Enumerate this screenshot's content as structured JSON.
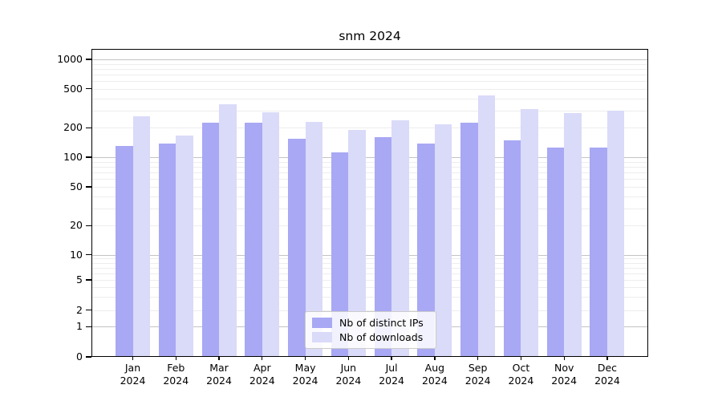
{
  "title": "snm 2024",
  "chart_data": {
    "type": "bar",
    "title": "snm 2024",
    "xlabel": "",
    "ylabel": "",
    "yscale": "symlog",
    "ylim": [
      0,
      1000
    ],
    "yticks": [
      0,
      1,
      2,
      5,
      10,
      20,
      50,
      100,
      200,
      500,
      1000
    ],
    "grid": "on",
    "legend_position": "bottom-center",
    "categories": [
      "Jan 2024",
      "Feb 2024",
      "Mar 2024",
      "Apr 2024",
      "May 2024",
      "Jun 2024",
      "Jul 2024",
      "Aug 2024",
      "Sep 2024",
      "Oct 2024",
      "Nov 2024",
      "Dec 2024"
    ],
    "series": [
      {
        "name": "Nb of distinct IPs",
        "color": "#a8a8f4",
        "values": [
          130,
          137,
          225,
          227,
          155,
          113,
          160,
          138,
          225,
          150,
          125,
          126
        ]
      },
      {
        "name": "Nb of downloads",
        "color": "#dadaf9",
        "values": [
          260,
          165,
          350,
          290,
          230,
          190,
          240,
          215,
          425,
          310,
          280,
          300
        ]
      }
    ]
  },
  "colors": {
    "grid_major": "#c3c3c3",
    "grid_minor": "#ededed",
    "axis": "#000000",
    "background": "#ffffff"
  }
}
